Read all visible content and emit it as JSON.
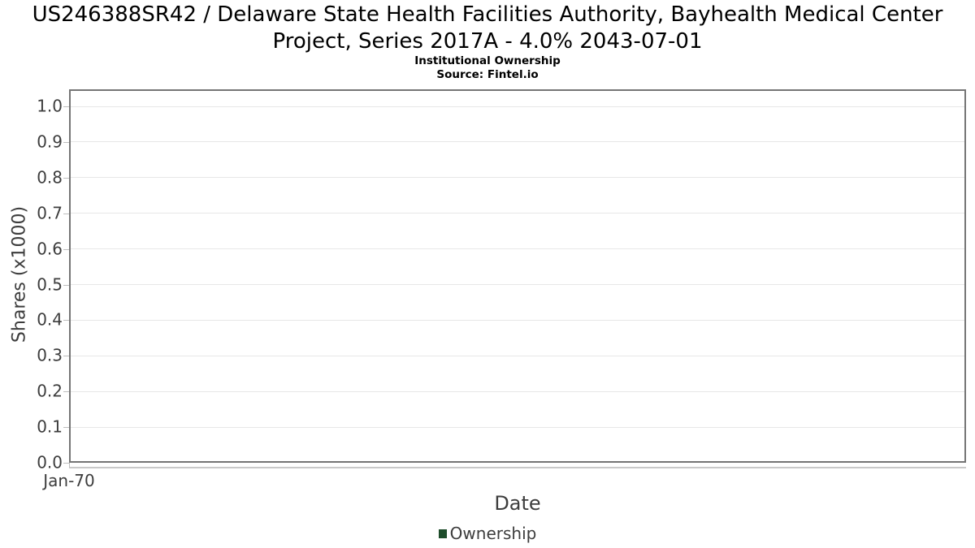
{
  "chart_data": {
    "type": "line",
    "title": "US246388SR42 / Delaware State Health Facilities Authority, Bayhealth Medical Center Project, Series 2017A - 4.0% 2043-07-01",
    "subtitle": "Institutional Ownership",
    "source": "Source: Fintel.io",
    "xlabel": "Date",
    "ylabel": "Shares (x1000)",
    "x_tick_labels": [
      "Jan-70"
    ],
    "y_ticks": [
      0.0,
      0.1,
      0.2,
      0.3,
      0.4,
      0.5,
      0.6,
      0.7,
      0.8,
      0.9,
      1.0
    ],
    "ylim": [
      0.0,
      1.05
    ],
    "grid": "horizontal",
    "legend_position": "bottom-center",
    "series": [
      {
        "name": "Ownership",
        "color": "#1e4d2b",
        "x": [],
        "values": []
      }
    ]
  },
  "colors": {
    "background": "#ffffff",
    "text_primary": "#000000",
    "text_axis": "#3d3d3d",
    "plot_border": "#757575",
    "gridline": "#e7e7e7",
    "tick_mark": "#bdbdbd",
    "axis_secondary_line": "#c9c9c9",
    "legend_marker": "#1e4d2b"
  }
}
